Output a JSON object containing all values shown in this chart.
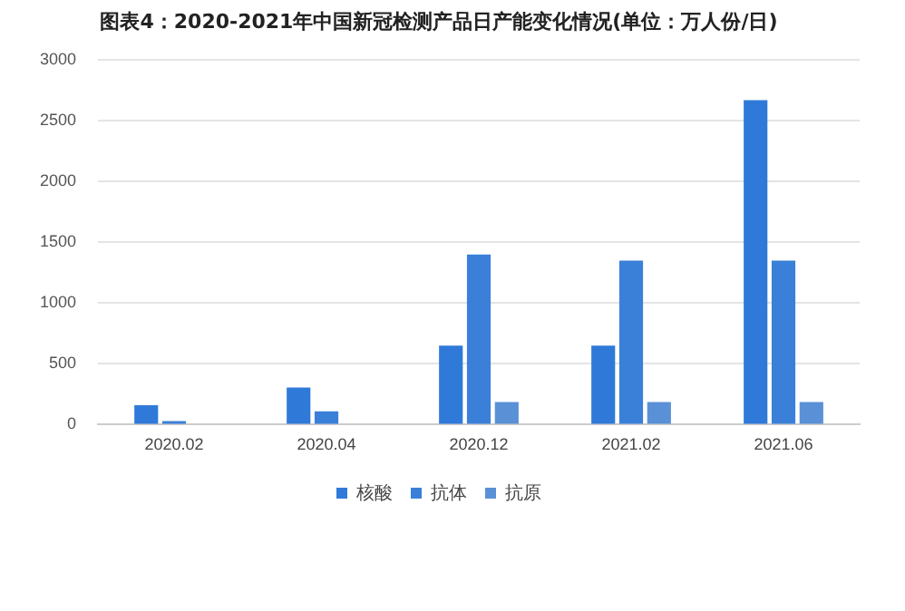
{
  "chart_data": {
    "type": "bar",
    "title": "图表4：2020-2021年中国新冠检测产品日产能变化情况(单位：万人份/日)",
    "categories": [
      "2020.02",
      "2020.04",
      "2020.12",
      "2021.02",
      "2021.06"
    ],
    "series": [
      {
        "name": "核酸",
        "color": "#2f7ad9",
        "values": [
          160,
          305,
          650,
          650,
          2670
        ]
      },
      {
        "name": "抗体",
        "color": "#3a80d8",
        "values": [
          30,
          110,
          1400,
          1350,
          1350
        ]
      },
      {
        "name": "抗原",
        "color": "#5a90d6",
        "values": [
          null,
          null,
          185,
          185,
          185
        ]
      }
    ],
    "ylim": [
      0,
      3000
    ],
    "yticks": [
      0,
      500,
      1000,
      1500,
      2000,
      2500,
      3000
    ],
    "grid": "y",
    "legend": "bottom"
  }
}
